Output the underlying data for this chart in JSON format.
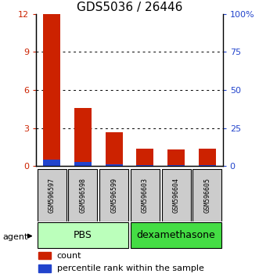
{
  "title": "GDS5036 / 26446",
  "samples": [
    "GSM596597",
    "GSM596598",
    "GSM596599",
    "GSM596603",
    "GSM596604",
    "GSM596605"
  ],
  "count_values": [
    12.0,
    4.6,
    2.7,
    1.4,
    1.3,
    1.4
  ],
  "percentile_values": [
    4.2,
    3.0,
    1.1,
    0.6,
    0.5,
    0.5
  ],
  "groups": [
    {
      "label": "PBS",
      "samples": [
        0,
        1,
        2
      ],
      "color": "#bbffbb"
    },
    {
      "label": "dexamethasone",
      "samples": [
        3,
        4,
        5
      ],
      "color": "#44dd44"
    }
  ],
  "ylim_left": [
    0,
    12
  ],
  "ylim_right": [
    0,
    100
  ],
  "yticks_left": [
    0,
    3,
    6,
    9,
    12
  ],
  "yticks_right": [
    0,
    25,
    50,
    75,
    100
  ],
  "ytick_labels_left": [
    "0",
    "3",
    "6",
    "9",
    "12"
  ],
  "ytick_labels_right": [
    "0",
    "25",
    "50",
    "75",
    "100%"
  ],
  "count_color": "#cc2200",
  "percentile_color": "#2244cc",
  "agent_label": "agent",
  "legend_count": "count",
  "legend_percentile": "percentile rank within the sample",
  "title_fontsize": 11,
  "tick_fontsize": 8,
  "sample_fontsize": 6,
  "group_label_fontsize": 9,
  "legend_fontsize": 8,
  "agent_fontsize": 8
}
